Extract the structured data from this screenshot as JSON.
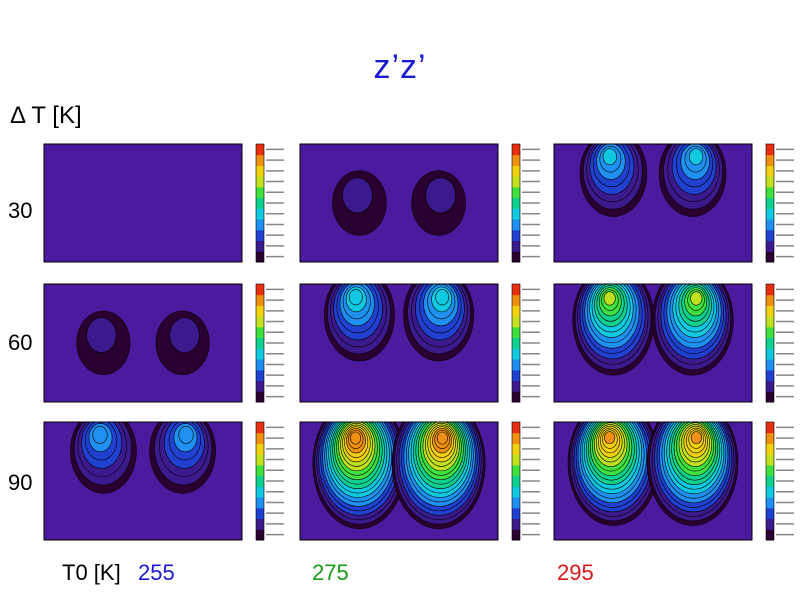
{
  "title": "z’z’",
  "row_axis_label": "Δ T [K]",
  "col_axis_label": "T0 [K]",
  "colors": {
    "background_fill": "#4b1a9e",
    "title": "#1a1ad2",
    "t0_255": "#1a1ad2",
    "t0_275": "#1a9c1a",
    "t0_295": "#d21a1a"
  },
  "chart_data": {
    "type": "heatmap",
    "rows": [
      {
        "delta_t": "30"
      },
      {
        "delta_t": "60"
      },
      {
        "delta_t": "90"
      }
    ],
    "columns": [
      {
        "t0": "255",
        "color": "#1a1ad2"
      },
      {
        "t0": "275",
        "color": "#1a9c1a"
      },
      {
        "t0": "295",
        "color": "#d21a1a"
      }
    ],
    "panels": [
      {
        "row": 0,
        "col": 0,
        "intensity": 0.0
      },
      {
        "row": 0,
        "col": 1,
        "intensity": 0.08
      },
      {
        "row": 0,
        "col": 2,
        "intensity": 0.35
      },
      {
        "row": 1,
        "col": 0,
        "intensity": 0.07
      },
      {
        "row": 1,
        "col": 1,
        "intensity": 0.42
      },
      {
        "row": 1,
        "col": 2,
        "intensity": 0.65
      },
      {
        "row": 2,
        "col": 0,
        "intensity": 0.33
      },
      {
        "row": 2,
        "col": 1,
        "intensity": 0.9
      },
      {
        "row": 2,
        "col": 2,
        "intensity": 0.85
      }
    ],
    "colormap": [
      "#2a0030",
      "#3a1a8c",
      "#2040d0",
      "#2090f0",
      "#10c8e0",
      "#10d090",
      "#40e040",
      "#c0e020",
      "#f0d010",
      "#f09010",
      "#e83010"
    ]
  }
}
